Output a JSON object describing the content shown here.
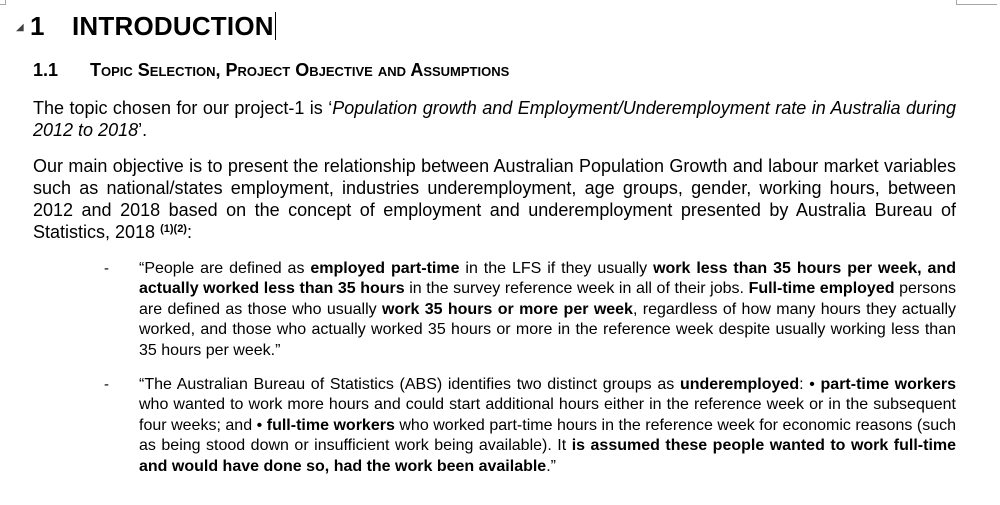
{
  "heading1": {
    "number": "1",
    "title": "INTRODUCTION"
  },
  "heading2": {
    "number": "1.1",
    "title": "Topic Selection, Project Objective and Assumptions"
  },
  "paragraph1": {
    "lead": "The topic chosen for our project-1 is ‘",
    "topic": "Population growth and Employment/Underemployment rate in Australia during 2012 to 2018",
    "trail": "’."
  },
  "paragraph2": {
    "text": "Our main objective is to present the relationship between Australian Population Growth and labour market variables such as national/states employment, industries underemployment, age groups, gender, working hours, between 2012 and 2018 based on the concept of employment and underemployment presented by Australia Bureau of Statistics, 2018",
    "ref1": "(1)",
    "ref2": "(2)",
    "end": ":"
  },
  "bullets": [
    {
      "marker": "-",
      "parts": [
        {
          "t": "“People are defined as ",
          "b": false
        },
        {
          "t": "employed part-time",
          "b": true
        },
        {
          "t": " in the LFS if they usually ",
          "b": false
        },
        {
          "t": "work less than 35 hours per week, and actually worked less than 35 hours",
          "b": true
        },
        {
          "t": " in the survey reference week in all of their jobs. ",
          "b": false
        },
        {
          "t": "Full-time employed",
          "b": true
        },
        {
          "t": " persons are defined as those who usually ",
          "b": false
        },
        {
          "t": "work 35 hours or more per week",
          "b": true
        },
        {
          "t": ", regardless of how many hours they actually worked, and those who actually worked 35 hours or more in the reference week despite usually working less than 35 hours per week.”",
          "b": false
        }
      ]
    },
    {
      "marker": "-",
      "parts": [
        {
          "t": "“The Australian Bureau of Statistics (ABS) identifies two distinct groups as ",
          "b": false
        },
        {
          "t": "underemployed",
          "b": true
        },
        {
          "t": ": • ",
          "b": false
        },
        {
          "t": "part-time workers",
          "b": true
        },
        {
          "t": " who wanted to work more hours and could start additional hours either in the reference week or in the subsequent four weeks; and • ",
          "b": false
        },
        {
          "t": "full-time workers",
          "b": true
        },
        {
          "t": " who worked part-time hours in the reference week for economic reasons (such as being stood down or insufficient work being available). It ",
          "b": false
        },
        {
          "t": "is assumed these people wanted to work full-time and would have done so, had the work been available",
          "b": true
        },
        {
          "t": ".”",
          "b": false
        }
      ]
    }
  ]
}
